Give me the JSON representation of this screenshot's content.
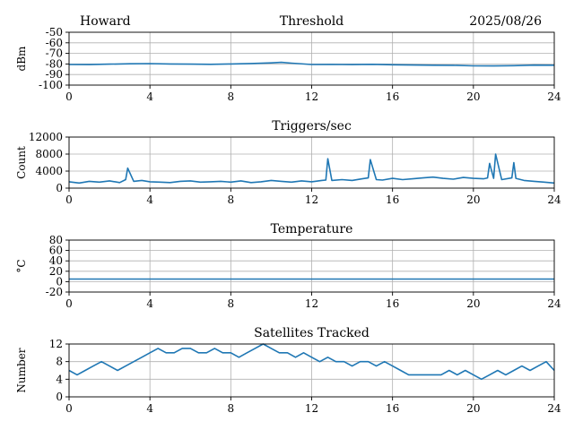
{
  "header": {
    "station": "Howard",
    "date": "2025/08/26"
  },
  "chart_data": [
    {
      "type": "line",
      "title": "Threshold",
      "ylabel": "dBm",
      "xlim": [
        0,
        24
      ],
      "ylim": [
        -100,
        -50
      ],
      "x_ticks": [
        "0",
        "4",
        "8",
        "12",
        "16",
        "20",
        "24"
      ],
      "y_ticks": [
        "-50",
        "-60",
        "-70",
        "-80",
        "-90",
        "-100"
      ],
      "grid": true,
      "color": "#1f77b4",
      "series": [
        {
          "x": [
            0,
            1,
            2,
            3,
            4,
            5,
            6,
            7,
            8,
            9,
            10,
            10.5,
            11,
            12,
            13,
            14,
            15,
            16,
            17,
            18,
            19,
            20,
            21,
            22,
            23,
            24
          ],
          "values": [
            -80.5,
            -80.6,
            -80.2,
            -79.8,
            -79.7,
            -80.0,
            -80.2,
            -80.3,
            -80.0,
            -79.6,
            -79.0,
            -78.5,
            -79.2,
            -80.5,
            -80.4,
            -80.6,
            -80.3,
            -80.8,
            -81.0,
            -81.2,
            -81.3,
            -81.8,
            -81.9,
            -81.6,
            -81.1,
            -81.2
          ]
        }
      ]
    },
    {
      "type": "line",
      "title": "Triggers/sec",
      "ylabel": "Count",
      "xlim": [
        0,
        24
      ],
      "ylim": [
        0,
        12000
      ],
      "x_ticks": [
        "0",
        "4",
        "8",
        "12",
        "16",
        "20",
        "24"
      ],
      "y_ticks": [
        "0",
        "4000",
        "8000",
        "12000"
      ],
      "grid": true,
      "color": "#1f77b4",
      "series": [
        {
          "x": [
            0,
            0.5,
            1.0,
            1.5,
            2.0,
            2.5,
            2.8,
            2.9,
            3.2,
            3.6,
            4.0,
            4.5,
            5.0,
            5.5,
            6.0,
            6.5,
            7.0,
            7.5,
            8.0,
            8.5,
            9.0,
            9.5,
            10.0,
            10.5,
            11.0,
            11.5,
            12.0,
            12.5,
            12.7,
            12.8,
            13.0,
            13.5,
            14.0,
            14.5,
            14.8,
            14.9,
            15.2,
            15.5,
            16.0,
            16.5,
            17.0,
            17.5,
            18.0,
            18.5,
            19.0,
            19.5,
            20.0,
            20.5,
            20.7,
            20.8,
            21.0,
            21.1,
            21.4,
            21.9,
            22.0,
            22.1,
            22.5,
            23.0,
            23.5,
            24.0
          ],
          "values": [
            1500,
            1200,
            1600,
            1400,
            1700,
            1300,
            2000,
            4700,
            1600,
            1800,
            1500,
            1400,
            1300,
            1600,
            1700,
            1400,
            1500,
            1600,
            1400,
            1700,
            1300,
            1500,
            1800,
            1600,
            1400,
            1700,
            1500,
            1800,
            1900,
            6900,
            1800,
            2000,
            1800,
            2200,
            2400,
            6700,
            2000,
            1900,
            2300,
            2000,
            2200,
            2400,
            2600,
            2300,
            2100,
            2500,
            2300,
            2200,
            2400,
            5800,
            2300,
            8000,
            2000,
            2400,
            6000,
            2300,
            1800,
            1600,
            1400,
            1200
          ]
        }
      ]
    },
    {
      "type": "line",
      "title": "Temperature",
      "ylabel": "°C",
      "xlim": [
        0,
        24
      ],
      "ylim": [
        -20,
        80
      ],
      "x_ticks": [
        "0",
        "4",
        "8",
        "12",
        "16",
        "20",
        "24"
      ],
      "y_ticks": [
        "-20",
        "0",
        "20",
        "40",
        "60",
        "80"
      ],
      "grid": true,
      "color": "#1f77b4",
      "series": [
        {
          "x": [
            0,
            24
          ],
          "values": [
            5,
            5
          ]
        }
      ]
    },
    {
      "type": "line",
      "title": "Satellites Tracked",
      "ylabel": "Number",
      "xlim": [
        0,
        24
      ],
      "ylim": [
        0,
        12
      ],
      "x_ticks": [
        "0",
        "4",
        "8",
        "12",
        "16",
        "20",
        "24"
      ],
      "y_ticks": [
        "0",
        "4",
        "8",
        "12"
      ],
      "grid": true,
      "color": "#1f77b4",
      "series": [
        {
          "x": [
            0,
            0.4,
            0.8,
            1.2,
            1.6,
            2.0,
            2.4,
            2.8,
            3.2,
            3.6,
            4.0,
            4.4,
            4.8,
            5.2,
            5.6,
            6.0,
            6.4,
            6.8,
            7.2,
            7.6,
            8.0,
            8.4,
            8.8,
            9.2,
            9.6,
            10.0,
            10.4,
            10.8,
            11.2,
            11.6,
            12.0,
            12.4,
            12.8,
            13.2,
            13.6,
            14.0,
            14.4,
            14.8,
            15.2,
            15.6,
            16.0,
            16.4,
            16.8,
            17.2,
            17.6,
            18.0,
            18.4,
            18.8,
            19.2,
            19.6,
            20.0,
            20.4,
            20.8,
            21.2,
            21.6,
            22.0,
            22.4,
            22.8,
            23.2,
            23.6,
            24.0
          ],
          "values": [
            6,
            5,
            6,
            7,
            8,
            7,
            6,
            7,
            8,
            9,
            10,
            11,
            10,
            10,
            11,
            11,
            10,
            10,
            11,
            10,
            10,
            9,
            10,
            11,
            12,
            11,
            10,
            10,
            9,
            10,
            9,
            8,
            9,
            8,
            8,
            7,
            8,
            8,
            7,
            8,
            7,
            6,
            5,
            5,
            5,
            5,
            5,
            6,
            5,
            6,
            5,
            4,
            5,
            6,
            5,
            6,
            7,
            6,
            7,
            8,
            6
          ]
        }
      ]
    }
  ]
}
